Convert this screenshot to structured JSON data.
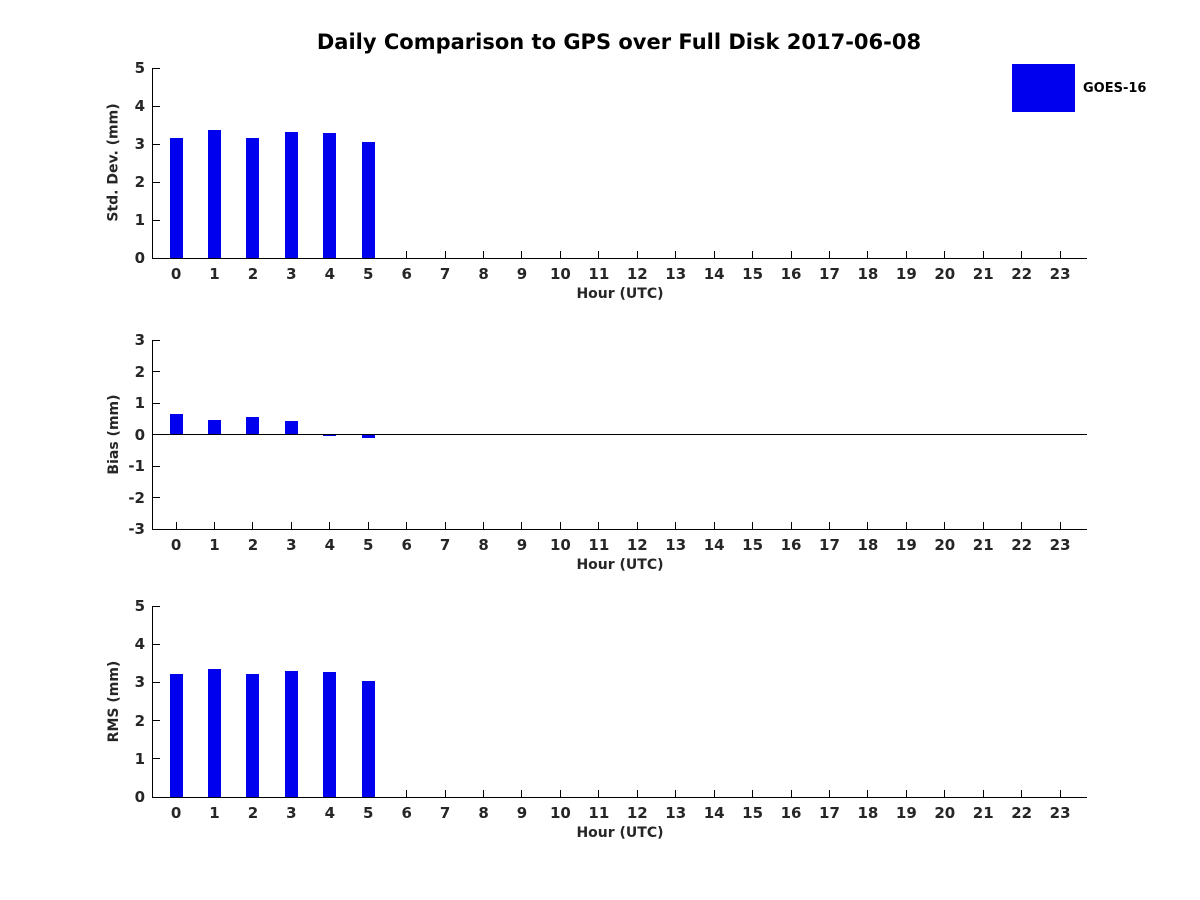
{
  "page": {
    "title": "Daily Comparison to GPS over Full Disk 2017-06-08"
  },
  "legend": {
    "label": "GOES-16",
    "swatch_color": "#0000ee"
  },
  "colors": {
    "bar": "#0000ee",
    "axis": "#000000",
    "tick_text": "#262626",
    "title_text": "#000000"
  },
  "chart_data": [
    {
      "type": "bar",
      "series_name": "GOES-16",
      "ylabel": "Std. Dev. (mm)",
      "xlabel": "Hour (UTC)",
      "x": [
        0,
        1,
        2,
        3,
        4,
        5
      ],
      "values": [
        3.16,
        3.36,
        3.17,
        3.31,
        3.28,
        3.04
      ],
      "xlim": [
        -0.6,
        23.7
      ],
      "ylim": [
        0,
        5
      ],
      "xticks": [
        0,
        1,
        2,
        3,
        4,
        5,
        6,
        7,
        8,
        9,
        10,
        11,
        12,
        13,
        14,
        15,
        16,
        17,
        18,
        19,
        20,
        21,
        22,
        23
      ],
      "yticks": [
        0,
        1,
        2,
        3,
        4,
        5
      ],
      "zero_line": false,
      "grid": false
    },
    {
      "type": "bar",
      "series_name": "GOES-16",
      "ylabel": "Bias (mm)",
      "xlabel": "Hour (UTC)",
      "x": [
        0,
        1,
        2,
        3,
        4,
        5
      ],
      "values": [
        0.65,
        0.47,
        0.56,
        0.44,
        -0.05,
        -0.1
      ],
      "xlim": [
        -0.6,
        23.7
      ],
      "ylim": [
        -3,
        3
      ],
      "xticks": [
        0,
        1,
        2,
        3,
        4,
        5,
        6,
        7,
        8,
        9,
        10,
        11,
        12,
        13,
        14,
        15,
        16,
        17,
        18,
        19,
        20,
        21,
        22,
        23
      ],
      "yticks": [
        -3,
        -2,
        -1,
        0,
        1,
        2,
        3
      ],
      "zero_line": true,
      "grid": false
    },
    {
      "type": "bar",
      "series_name": "GOES-16",
      "ylabel": "RMS (mm)",
      "xlabel": "Hour (UTC)",
      "x": [
        0,
        1,
        2,
        3,
        4,
        5
      ],
      "values": [
        3.23,
        3.35,
        3.23,
        3.31,
        3.27,
        3.04
      ],
      "xlim": [
        -0.6,
        23.7
      ],
      "ylim": [
        0,
        5
      ],
      "xticks": [
        0,
        1,
        2,
        3,
        4,
        5,
        6,
        7,
        8,
        9,
        10,
        11,
        12,
        13,
        14,
        15,
        16,
        17,
        18,
        19,
        20,
        21,
        22,
        23
      ],
      "yticks": [
        0,
        1,
        2,
        3,
        4,
        5
      ],
      "zero_line": false,
      "grid": false
    }
  ]
}
